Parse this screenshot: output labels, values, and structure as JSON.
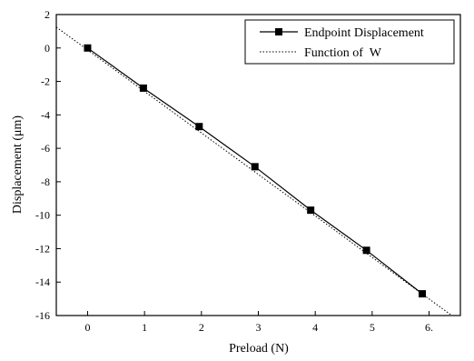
{
  "chart_data": {
    "type": "line",
    "xlabel": "Preload (N)",
    "ylabel": "Displacement (μm)",
    "xlim": [
      -0.55,
      6.55
    ],
    "ylim": [
      -16,
      2
    ],
    "xticks": [
      0,
      1,
      2,
      3,
      4,
      5,
      6
    ],
    "xtick_labels": [
      "0",
      "1",
      "2",
      "3",
      "4",
      "5",
      "6."
    ],
    "yticks": [
      2,
      0,
      -2,
      -4,
      -6,
      -8,
      -10,
      -12,
      -14,
      -16
    ],
    "grid": false,
    "legend_position": "top-right",
    "series": [
      {
        "name": "Endpoint Displacement",
        "style": "solid line with square markers",
        "x": [
          0,
          0.98,
          1.96,
          2.94,
          3.92,
          4.9,
          5.88
        ],
        "y": [
          0,
          -2.4,
          -4.7,
          -7.1,
          -9.7,
          -12.1,
          -14.7
        ]
      },
      {
        "name": "Function of  W",
        "style": "dotted line",
        "x": [
          -0.55,
          6.4
        ],
        "y": [
          1.25,
          -16
        ]
      }
    ]
  }
}
